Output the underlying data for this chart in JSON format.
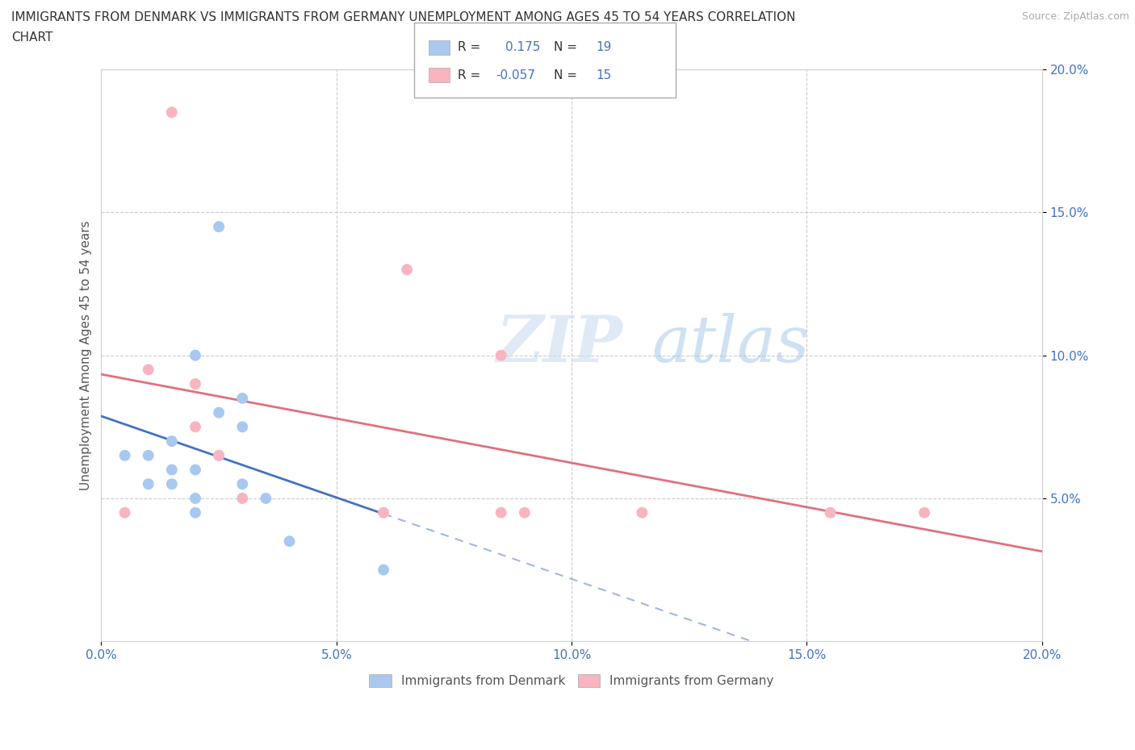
{
  "title_line1": "IMMIGRANTS FROM DENMARK VS IMMIGRANTS FROM GERMANY UNEMPLOYMENT AMONG AGES 45 TO 54 YEARS CORRELATION",
  "title_line2": "CHART",
  "source": "Source: ZipAtlas.com",
  "ylabel": "Unemployment Among Ages 45 to 54 years",
  "xlim": [
    0.0,
    0.2
  ],
  "ylim": [
    0.0,
    0.2
  ],
  "xticks": [
    0.0,
    0.05,
    0.1,
    0.15,
    0.2
  ],
  "yticks": [
    0.05,
    0.1,
    0.15,
    0.2
  ],
  "denmark_color": "#a8c8f0",
  "germany_color": "#f8b4c0",
  "denmark_line_color": "#4472c4",
  "germany_line_color": "#e07080",
  "denmark_R": 0.175,
  "denmark_N": 19,
  "germany_R": -0.057,
  "germany_N": 15,
  "watermark_zip": "ZIP",
  "watermark_atlas": "atlas",
  "denmark_x": [
    0.005,
    0.01,
    0.01,
    0.015,
    0.015,
    0.015,
    0.02,
    0.02,
    0.02,
    0.02,
    0.025,
    0.025,
    0.025,
    0.03,
    0.03,
    0.03,
    0.035,
    0.04,
    0.06
  ],
  "denmark_y": [
    0.065,
    0.055,
    0.065,
    0.055,
    0.06,
    0.07,
    0.045,
    0.05,
    0.06,
    0.1,
    0.065,
    0.08,
    0.145,
    0.055,
    0.075,
    0.085,
    0.05,
    0.035,
    0.025
  ],
  "germany_x": [
    0.005,
    0.01,
    0.015,
    0.02,
    0.02,
    0.025,
    0.03,
    0.06,
    0.065,
    0.085,
    0.085,
    0.09,
    0.115,
    0.155,
    0.175
  ],
  "germany_y": [
    0.045,
    0.095,
    0.185,
    0.09,
    0.075,
    0.065,
    0.05,
    0.045,
    0.13,
    0.045,
    0.1,
    0.045,
    0.045,
    0.045,
    0.045
  ],
  "legend_label_denmark": "Immigrants from Denmark",
  "legend_label_germany": "Immigrants from Germany"
}
